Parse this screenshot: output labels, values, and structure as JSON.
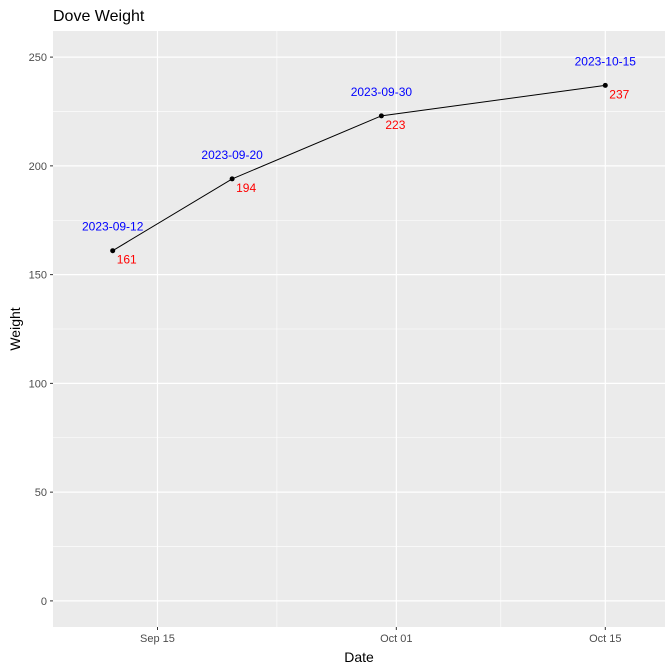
{
  "chart_data": {
    "type": "line",
    "title": "Dove Weight",
    "xlabel": "Date",
    "ylabel": "Weight",
    "x": [
      "2023-09-12",
      "2023-09-20",
      "2023-09-30",
      "2023-10-15"
    ],
    "series": [
      {
        "values": [
          161,
          194,
          223,
          237
        ]
      }
    ],
    "point_labels_top": [
      "2023-09-12",
      "2023-09-20",
      "2023-09-30",
      "2023-10-15"
    ],
    "point_labels_value": [
      "161",
      "194",
      "223",
      "237"
    ],
    "x_ticks": [
      {
        "date": "2023-09-15",
        "label": "Sep 15"
      },
      {
        "date": "2023-10-01",
        "label": "Oct 01"
      },
      {
        "date": "2023-10-15",
        "label": "Oct 15"
      }
    ],
    "y_ticks": [
      0,
      50,
      100,
      150,
      200,
      250
    ],
    "ylim": [
      -12,
      262
    ],
    "xlim": [
      "2023-09-08",
      "2023-10-19"
    ],
    "grid": true,
    "colors": {
      "panel": "#ebebeb",
      "grid_major": "#ffffff",
      "line": "#000000",
      "date_label": "#0000ff",
      "value_label": "#ff0000"
    }
  }
}
